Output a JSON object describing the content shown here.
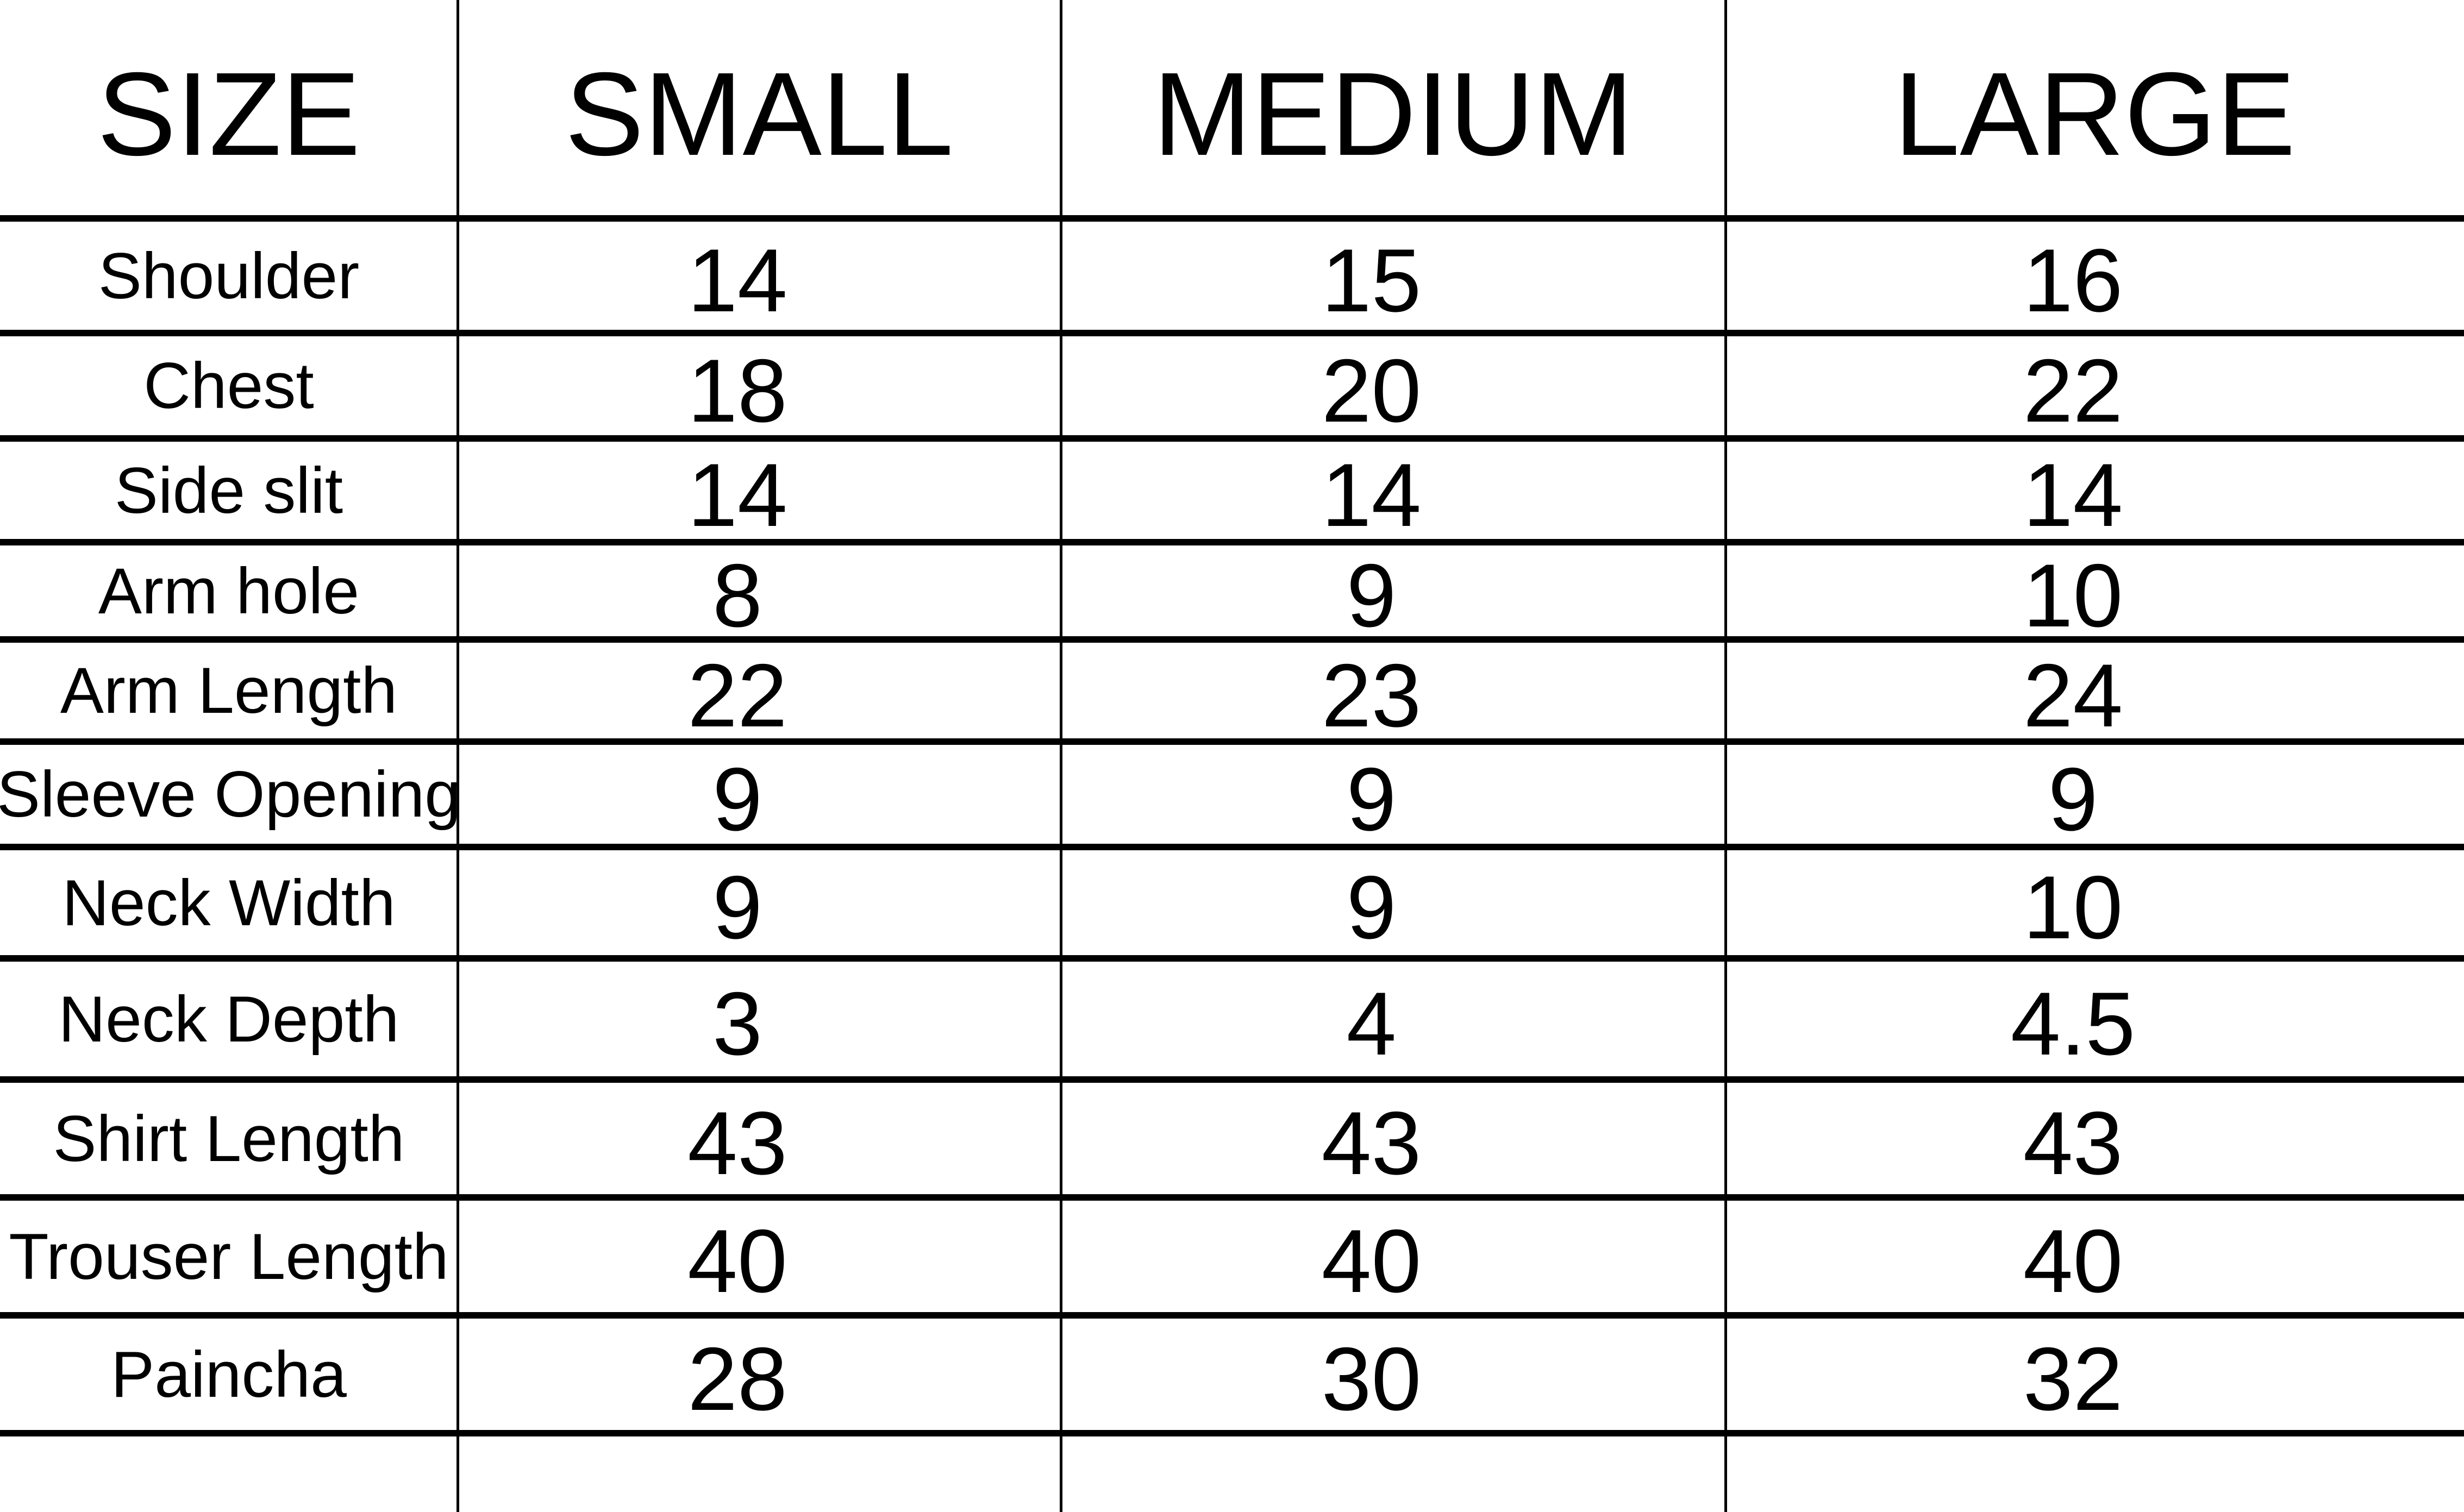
{
  "table": {
    "headers": [
      "SIZE",
      "SMALL",
      "MEDIUM",
      "LARGE"
    ],
    "rows": [
      {
        "label": "Shoulder",
        "values": [
          "14",
          "15",
          "16"
        ]
      },
      {
        "label": "Chest",
        "values": [
          "18",
          "20",
          "22"
        ]
      },
      {
        "label": "Side slit",
        "values": [
          "14",
          "14",
          "14"
        ]
      },
      {
        "label": "Arm hole",
        "values": [
          "8",
          "9",
          "10"
        ]
      },
      {
        "label": "Arm Length",
        "values": [
          "22",
          "23",
          "24"
        ]
      },
      {
        "label": "Sleeve Opening",
        "values": [
          "9",
          "9",
          "9"
        ]
      },
      {
        "label": "Neck Width",
        "values": [
          "9",
          "9",
          "10"
        ]
      },
      {
        "label": "Neck Depth",
        "values": [
          "3",
          "4",
          "4.5"
        ]
      },
      {
        "label": "Shirt Length",
        "values": [
          "43",
          "43",
          "43"
        ]
      },
      {
        "label": "Trouser Length",
        "values": [
          "40",
          "40",
          "40"
        ]
      },
      {
        "label": "Paincha",
        "values": [
          "28",
          "30",
          "32"
        ]
      }
    ]
  }
}
